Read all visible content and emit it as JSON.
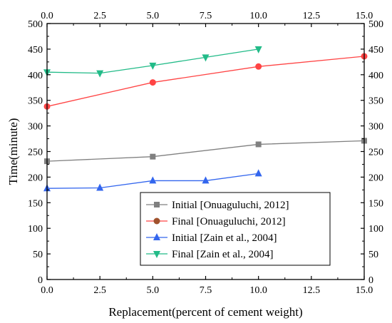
{
  "chart_data": {
    "type": "line",
    "title": "",
    "xlabel": "Replacement(percent of cement weight)",
    "ylabel": "Time(minute)",
    "xlim": [
      0,
      15
    ],
    "ylim": [
      0,
      500
    ],
    "xticks": [
      "0.0",
      "2.5",
      "5.0",
      "7.5",
      "10.0",
      "12.5",
      "15.0"
    ],
    "yticks": [
      "0",
      "50",
      "100",
      "150",
      "200",
      "250",
      "300",
      "350",
      "400",
      "450",
      "500"
    ],
    "top_xticks": [
      "0.0",
      "2.5",
      "5.0",
      "7.5",
      "10.0",
      "12.5",
      "15.0"
    ],
    "right_yticks": [
      "0",
      "50",
      "100",
      "150",
      "200",
      "250",
      "300",
      "350",
      "400",
      "450",
      "500"
    ],
    "grid": false,
    "legend_position": "lower-right",
    "series": [
      {
        "name": "Initial [Onuaguluchi, 2012]",
        "marker": "square",
        "color": "#808080",
        "x": [
          0,
          5,
          10,
          15
        ],
        "y": [
          231,
          240,
          264,
          271
        ]
      },
      {
        "name": "Final [Onuaguluchi, 2012]",
        "marker": "circle",
        "color": "#ff4444",
        "legend_color": "#a0522d",
        "x": [
          0,
          5,
          10,
          15
        ],
        "y": [
          338,
          385,
          416,
          436
        ]
      },
      {
        "name": "Initial [Zain et al., 2004]",
        "marker": "triangle-up",
        "color": "#3366ee",
        "x": [
          0,
          2.5,
          5,
          7.5,
          10
        ],
        "y": [
          178,
          179,
          193,
          193,
          207
        ]
      },
      {
        "name": "Final [Zain et al., 2004]",
        "marker": "triangle-down",
        "color": "#22bb88",
        "x": [
          0,
          2.5,
          5,
          7.5,
          10
        ],
        "y": [
          405,
          403,
          418,
          434,
          450
        ]
      }
    ]
  }
}
